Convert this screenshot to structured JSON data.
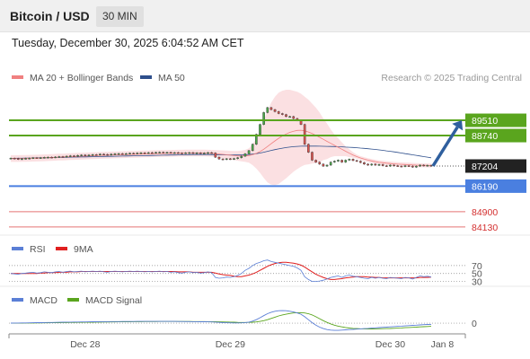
{
  "header": {
    "title": "Bitcoin / USD",
    "timeframe": "30 MIN",
    "datetime": "Tuesday, December 30, 2025 6:04:52 AM CET"
  },
  "legend": {
    "items": [
      {
        "label": "MA 20 + Bollinger Bands",
        "color": "#f08080"
      },
      {
        "label": "MA 50",
        "color": "#2e4f8c"
      }
    ],
    "credit": "Research © 2025 Trading Central"
  },
  "colors": {
    "resistance": "#5aa51e",
    "pivot": "#4a7fe0",
    "support": "#e57373",
    "candle_up": "#4aa84a",
    "candle_down": "#d9534f",
    "arrow": "#2f5f9e",
    "last_price_bg": "#222222",
    "bollinger_fill": "#fadadd",
    "rsi": "#5b7fd6",
    "rsi_ma": "#e02020",
    "macd": "#5b7fd6",
    "macd_signal": "#5aa51e"
  },
  "levels": [
    {
      "value": "89510",
      "type": "resistance"
    },
    {
      "value": "88740",
      "type": "resistance"
    },
    {
      "value": "86190",
      "type": "pivot"
    },
    {
      "value": "84900",
      "type": "support"
    },
    {
      "value": "84130",
      "type": "support"
    }
  ],
  "last_price": "87204",
  "rsi_panel": {
    "legend": [
      {
        "label": "RSI",
        "color": "#5b7fd6"
      },
      {
        "label": "9MA",
        "color": "#e02020"
      }
    ],
    "levels": [
      "70",
      "50",
      "30"
    ]
  },
  "macd_panel": {
    "legend": [
      {
        "label": "MACD",
        "color": "#5b7fd6"
      },
      {
        "label": "MACD Signal",
        "color": "#5aa51e"
      }
    ],
    "zero_label": "0"
  },
  "x_axis": {
    "ticks": [
      "Dec 28",
      "Dec 29",
      "Dec 30",
      "Jan 8"
    ]
  },
  "chart_data": {
    "type": "candlestick",
    "title": "Bitcoin / USD",
    "interval": "30 MIN",
    "y_range": [
      83900,
      91050
    ],
    "close": [
      87600,
      87580,
      87550,
      87570,
      87590,
      87600,
      87620,
      87610,
      87620,
      87640,
      87650,
      87640,
      87660,
      87680,
      87660,
      87700,
      87720,
      87710,
      87740,
      87760,
      87740,
      87760,
      87780,
      87770,
      87800,
      87790,
      87770,
      87800,
      87820,
      87830,
      87810,
      87830,
      87850,
      87840,
      87860,
      87870,
      87860,
      87880,
      87870,
      87890,
      87900,
      87880,
      87890,
      87870,
      87880,
      87860,
      87850,
      87870,
      87880,
      87860,
      87870,
      87850,
      87860,
      87880,
      87860,
      87650,
      87560,
      87540,
      87570,
      87550,
      87580,
      87620,
      87700,
      87820,
      87980,
      88300,
      88800,
      89300,
      89900,
      90150,
      90050,
      89950,
      89850,
      89800,
      89700,
      89700,
      89600,
      89500,
      89300,
      88300,
      87900,
      87500,
      87400,
      87300,
      87200,
      87250,
      87400,
      87450,
      87500,
      87400,
      87500,
      87550,
      87480,
      87450,
      87380,
      87300,
      87250,
      87300,
      87250,
      87280,
      87220,
      87200,
      87250,
      87220,
      87200,
      87180,
      87220,
      87200,
      87150,
      87200,
      87250,
      87220,
      87240,
      87204
    ],
    "ma20": [
      87580,
      87580,
      87582,
      87586,
      87590,
      87595,
      87600,
      87605,
      87612,
      87620,
      87628,
      87636,
      87644,
      87652,
      87660,
      87668,
      87676,
      87684,
      87692,
      87700,
      87708,
      87716,
      87724,
      87732,
      87740,
      87746,
      87752,
      87758,
      87764,
      87770,
      87776,
      87782,
      87788,
      87794,
      87800,
      87806,
      87812,
      87818,
      87824,
      87830,
      87834,
      87838,
      87842,
      87846,
      87850,
      87852,
      87854,
      87856,
      87858,
      87860,
      87860,
      87858,
      87856,
      87854,
      87850,
      87830,
      87810,
      87790,
      87770,
      87750,
      87730,
      87715,
      87710,
      87715,
      87735,
      87775,
      87840,
      87930,
      88050,
      88190,
      88330,
      88470,
      88600,
      88720,
      88820,
      88900,
      88960,
      89000,
      89010,
      88980,
      88920,
      88840,
      88750,
      88650,
      88550,
      88450,
      88350,
      88250,
      88150,
      88050,
      87950,
      87850,
      87760,
      87680,
      87610,
      87550,
      87500,
      87460,
      87420,
      87390,
      87370,
      87350,
      87330,
      87310,
      87300,
      87290,
      87280,
      87270,
      87260,
      87250,
      87245,
      87240,
      87235,
      87230
    ],
    "ma50": [
      87590,
      87592,
      87595,
      87598,
      87602,
      87606,
      87610,
      87614,
      87618,
      87622,
      87626,
      87630,
      87634,
      87638,
      87642,
      87646,
      87650,
      87654,
      87658,
      87662,
      87666,
      87670,
      87674,
      87678,
      87682,
      87686,
      87690,
      87694,
      87698,
      87702,
      87706,
      87710,
      87714,
      87718,
      87722,
      87726,
      87730,
      87734,
      87738,
      87742,
      87746,
      87750,
      87754,
      87758,
      87762,
      87766,
      87770,
      87774,
      87778,
      87782,
      87784,
      87784,
      87784,
      87782,
      87780,
      87776,
      87772,
      87768,
      87764,
      87760,
      87758,
      87758,
      87762,
      87770,
      87785,
      87805,
      87830,
      87860,
      87900,
      87945,
      87990,
      88030,
      88070,
      88105,
      88135,
      88160,
      88180,
      88195,
      88205,
      88208,
      88210,
      88210,
      88208,
      88205,
      88200,
      88195,
      88190,
      88185,
      88178,
      88170,
      88160,
      88150,
      88138,
      88125,
      88110,
      88095,
      88078,
      88060,
      88040,
      88018,
      87995,
      87970,
      87945,
      87918,
      87890,
      87860,
      87830,
      87800,
      87770,
      87740,
      87710,
      87680,
      87650,
      87620
    ],
    "bollinger": {
      "upper": [
        87750,
        87750,
        87752,
        87756,
        87760,
        87765,
        87770,
        87775,
        87782,
        87790,
        87798,
        87806,
        87814,
        87822,
        87830,
        87838,
        87846,
        87854,
        87862,
        87870,
        87878,
        87886,
        87894,
        87902,
        87910,
        87916,
        87922,
        87928,
        87934,
        87940,
        87946,
        87952,
        87958,
        87964,
        87970,
        87976,
        87982,
        87988,
        87994,
        88000,
        88004,
        88008,
        88012,
        88016,
        88020,
        88022,
        88024,
        88026,
        88028,
        88030,
        88030,
        88028,
        88026,
        88024,
        88020,
        88010,
        88000,
        87990,
        87980,
        87970,
        87960,
        87960,
        87980,
        88020,
        88100,
        88300,
        88600,
        89000,
        89500,
        90000,
        90400,
        90700,
        90900,
        91000,
        91050,
        91050,
        91000,
        90950,
        90850,
        90700,
        90550,
        90350,
        90150,
        89900,
        89600,
        89350,
        89050,
        88800,
        88600,
        88400,
        88200,
        88050,
        87900,
        87780,
        87700,
        87650,
        87600,
        87560,
        87520,
        87490,
        87470,
        87450,
        87430,
        87410,
        87400,
        87390,
        87380,
        87370,
        87360,
        87350,
        87345,
        87340,
        87335,
        87330
      ],
      "lower": [
        87410,
        87410,
        87412,
        87416,
        87420,
        87425,
        87430,
        87435,
        87442,
        87450,
        87458,
        87466,
        87474,
        87482,
        87490,
        87498,
        87506,
        87514,
        87522,
        87530,
        87538,
        87546,
        87554,
        87562,
        87570,
        87576,
        87582,
        87588,
        87594,
        87600,
        87606,
        87612,
        87618,
        87624,
        87630,
        87636,
        87642,
        87648,
        87654,
        87660,
        87664,
        87668,
        87672,
        87676,
        87680,
        87682,
        87684,
        87686,
        87688,
        87690,
        87690,
        87688,
        87686,
        87684,
        87680,
        87650,
        87620,
        87590,
        87560,
        87530,
        87500,
        87470,
        87440,
        87410,
        87370,
        87250,
        87080,
        86860,
        86600,
        86380,
        86260,
        86240,
        86300,
        86440,
        86590,
        86750,
        86920,
        87050,
        87170,
        87260,
        87290,
        87330,
        87350,
        87400,
        87500,
        87550,
        87650,
        87700,
        87700,
        87700,
        87700,
        87650,
        87620,
        87580,
        87520,
        87450,
        87400,
        87360,
        87320,
        87290,
        87270,
        87250,
        87230,
        87210,
        87200,
        87190,
        87180,
        87170,
        87160,
        87150,
        87145,
        87140,
        87135,
        87130
      ]
    },
    "forecast_arrow": {
      "from": 87204,
      "to": 89510
    },
    "levels": {
      "resistance": [
        89510,
        88740
      ],
      "pivot": 86190,
      "support": [
        84900,
        84130
      ]
    },
    "rsi": [
      50,
      49,
      48,
      50,
      51,
      52,
      53,
      51,
      52,
      54,
      53,
      52,
      54,
      55,
      53,
      55,
      56,
      54,
      55,
      56,
      54,
      55,
      56,
      55,
      56,
      54,
      53,
      55,
      56,
      55,
      54,
      55,
      56,
      55,
      56,
      55,
      54,
      55,
      54,
      55,
      56,
      54,
      55,
      53,
      54,
      52,
      51,
      53,
      54,
      52,
      53,
      51,
      52,
      54,
      52,
      40,
      38,
      39,
      41,
      40,
      42,
      45,
      50,
      58,
      63,
      70,
      75,
      78,
      82,
      84,
      80,
      78,
      76,
      74,
      72,
      70,
      68,
      64,
      58,
      42,
      35,
      30,
      30,
      31,
      33,
      36,
      40,
      42,
      44,
      40,
      44,
      46,
      43,
      42,
      40,
      38,
      37,
      40,
      38,
      40,
      38,
      37,
      40,
      39,
      38,
      37,
      40,
      39,
      36,
      40,
      44,
      42,
      43,
      41
    ],
    "rsi_9ma": [
      50,
      50,
      50,
      50,
      50,
      50,
      50,
      50,
      51,
      51,
      52,
      52,
      52,
      53,
      53,
      53,
      54,
      54,
      54,
      55,
      55,
      55,
      55,
      55,
      55,
      55,
      55,
      55,
      55,
      55,
      55,
      55,
      55,
      55,
      55,
      55,
      55,
      55,
      55,
      55,
      55,
      55,
      55,
      55,
      55,
      54,
      54,
      54,
      54,
      53,
      53,
      53,
      53,
      53,
      53,
      51,
      49,
      47,
      46,
      45,
      43,
      42,
      42,
      44,
      46,
      49,
      53,
      58,
      63,
      68,
      72,
      75,
      77,
      78,
      78,
      77,
      76,
      74,
      71,
      66,
      60,
      54,
      48,
      44,
      40,
      37,
      35,
      35,
      36,
      37,
      39,
      40,
      41,
      42,
      42,
      42,
      41,
      41,
      40,
      40,
      39,
      39,
      39,
      39,
      39,
      39,
      39,
      39,
      39,
      39,
      40,
      40,
      40,
      41
    ],
    "rsi_range": [
      20,
      90
    ],
    "rsi_levels": [
      70,
      50,
      30
    ],
    "macd": [
      0,
      2,
      3,
      4,
      5,
      6,
      8,
      9,
      10,
      12,
      13,
      14,
      16,
      17,
      18,
      20,
      21,
      22,
      23,
      24,
      25,
      26,
      27,
      28,
      29,
      30,
      30,
      31,
      32,
      32,
      33,
      33,
      34,
      34,
      35,
      35,
      35,
      36,
      36,
      36,
      36,
      36,
      36,
      35,
      35,
      34,
      33,
      32,
      31,
      30,
      29,
      28,
      27,
      26,
      25,
      20,
      15,
      10,
      8,
      6,
      4,
      4,
      6,
      12,
      20,
      40,
      70,
      110,
      150,
      190,
      220,
      240,
      250,
      252,
      250,
      240,
      225,
      205,
      180,
      130,
      70,
      10,
      -40,
      -80,
      -110,
      -130,
      -140,
      -145,
      -145,
      -140,
      -135,
      -130,
      -125,
      -120,
      -115,
      -110,
      -105,
      -100,
      -95,
      -90,
      -85,
      -80,
      -75,
      -70,
      -65,
      -60,
      -55,
      -50,
      -45,
      -40,
      -35,
      -30,
      -27,
      -25
    ],
    "macd_signal": [
      0,
      0,
      1,
      1,
      2,
      2,
      3,
      4,
      5,
      6,
      7,
      8,
      9,
      10,
      11,
      12,
      13,
      14,
      15,
      16,
      17,
      18,
      19,
      20,
      21,
      22,
      23,
      24,
      25,
      26,
      27,
      27,
      28,
      29,
      29,
      30,
      31,
      31,
      32,
      32,
      33,
      33,
      33,
      33,
      33,
      33,
      33,
      33,
      33,
      32,
      32,
      31,
      31,
      30,
      29,
      28,
      26,
      24,
      22,
      20,
      18,
      16,
      14,
      14,
      15,
      18,
      25,
      35,
      50,
      70,
      95,
      120,
      145,
      165,
      180,
      195,
      205,
      210,
      212,
      205,
      190,
      165,
      130,
      90,
      50,
      15,
      -15,
      -40,
      -60,
      -75,
      -88,
      -98,
      -105,
      -110,
      -113,
      -115,
      -116,
      -116,
      -115,
      -114,
      -112,
      -110,
      -107,
      -104,
      -100,
      -96,
      -92,
      -88,
      -84,
      -80,
      -76,
      -72,
      -68,
      -64
    ],
    "macd_range": [
      -180,
      290
    ],
    "x_ticks": [
      {
        "label": "Dec 28",
        "index": 20
      },
      {
        "label": "Dec 29",
        "index": 59
      },
      {
        "label": "Dec 30",
        "index": 102
      },
      {
        "label": "Jan 8",
        "index": 116
      }
    ]
  }
}
